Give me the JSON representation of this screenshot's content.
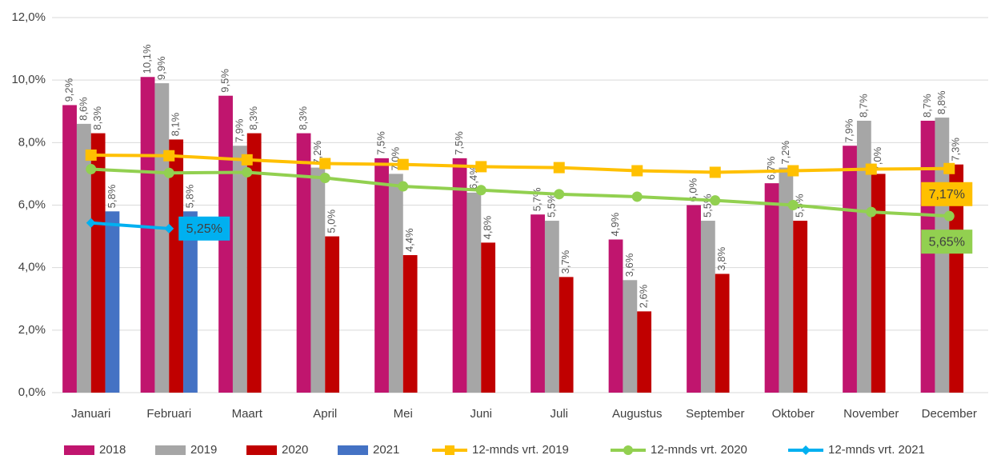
{
  "chart_data": {
    "type": "bar_line",
    "categories": [
      "Januari",
      "Februari",
      "Maart",
      "April",
      "Mei",
      "Juni",
      "Juli",
      "Augustus",
      "September",
      "Oktober",
      "November",
      "December"
    ],
    "ylim": [
      0,
      12
    ],
    "yticks": [
      {
        "value": 0,
        "label": "0,0%"
      },
      {
        "value": 2,
        "label": "2,0%"
      },
      {
        "value": 4,
        "label": "4,0%"
      },
      {
        "value": 6,
        "label": "6,0%"
      },
      {
        "value": 8,
        "label": "8,0%"
      },
      {
        "value": 10,
        "label": "10,0%"
      },
      {
        "value": 12,
        "label": "12,0%"
      }
    ],
    "grid": true,
    "legend": "bottom",
    "series": [
      {
        "name": "2018",
        "kind": "bar",
        "color": "#c0156e",
        "values": [
          9.2,
          10.1,
          9.5,
          8.3,
          7.5,
          7.5,
          5.7,
          4.9,
          6.0,
          6.7,
          7.9,
          8.7
        ],
        "value_labels": [
          "9,2%",
          "10,1%",
          "9,5%",
          "8,3%",
          "7,5%",
          "7,5%",
          "5,7%",
          "4,9%",
          "6,0%",
          "6,7%",
          "7,9%",
          "8,7%"
        ]
      },
      {
        "name": "2019",
        "kind": "bar",
        "color": "#a6a6a6",
        "values": [
          8.6,
          9.9,
          7.9,
          7.2,
          7.0,
          6.4,
          5.5,
          3.6,
          5.5,
          7.2,
          8.7,
          8.8
        ],
        "value_labels": [
          "8,6%",
          "9,9%",
          "7,9%",
          "7,2%",
          "7,0%",
          "6,4%",
          "5,5%",
          "3,6%",
          "5,5%",
          "7,2%",
          "8,7%",
          "8,8%"
        ]
      },
      {
        "name": "2020",
        "kind": "bar",
        "color": "#c00000",
        "values": [
          8.3,
          8.1,
          8.3,
          5.0,
          4.4,
          4.8,
          3.7,
          2.6,
          3.8,
          5.5,
          7.0,
          7.3
        ],
        "value_labels": [
          "8,3%",
          "8,1%",
          "8,3%",
          "5,0%",
          "4,4%",
          "4,8%",
          "3,7%",
          "2,6%",
          "3,8%",
          "5,5%",
          "7,0%",
          "7,3%"
        ]
      },
      {
        "name": "2021",
        "kind": "bar",
        "color": "#4472c4",
        "values": [
          5.8,
          5.8,
          null,
          null,
          null,
          null,
          null,
          null,
          null,
          null,
          null,
          null
        ],
        "value_labels": [
          "5,8%",
          "5,8%",
          null,
          null,
          null,
          null,
          null,
          null,
          null,
          null,
          null,
          null
        ]
      },
      {
        "name": "12-mnds vrt. 2019",
        "kind": "line",
        "marker": "square",
        "color": "#ffc000",
        "values": [
          7.6,
          7.58,
          7.45,
          7.33,
          7.3,
          7.23,
          7.2,
          7.1,
          7.05,
          7.1,
          7.15,
          7.17
        ],
        "value_labels": [
          null,
          null,
          null,
          null,
          null,
          null,
          null,
          null,
          null,
          null,
          null,
          "7,17%"
        ]
      },
      {
        "name": "12-mnds vrt. 2020",
        "kind": "line",
        "marker": "circle",
        "color": "#92d050",
        "values": [
          7.15,
          7.03,
          7.05,
          6.87,
          6.6,
          6.48,
          6.35,
          6.27,
          6.15,
          6.0,
          5.78,
          5.65
        ],
        "value_labels": [
          null,
          null,
          null,
          null,
          null,
          null,
          null,
          null,
          null,
          null,
          null,
          "5,65%"
        ]
      },
      {
        "name": "12-mnds vrt. 2021",
        "kind": "line",
        "marker": "diamond",
        "color": "#00b0f0",
        "values": [
          5.43,
          5.25,
          null,
          null,
          null,
          null,
          null,
          null,
          null,
          null,
          null,
          null
        ],
        "value_labels": [
          null,
          "5,25%",
          null,
          null,
          null,
          null,
          null,
          null,
          null,
          null,
          null,
          null
        ]
      }
    ]
  }
}
